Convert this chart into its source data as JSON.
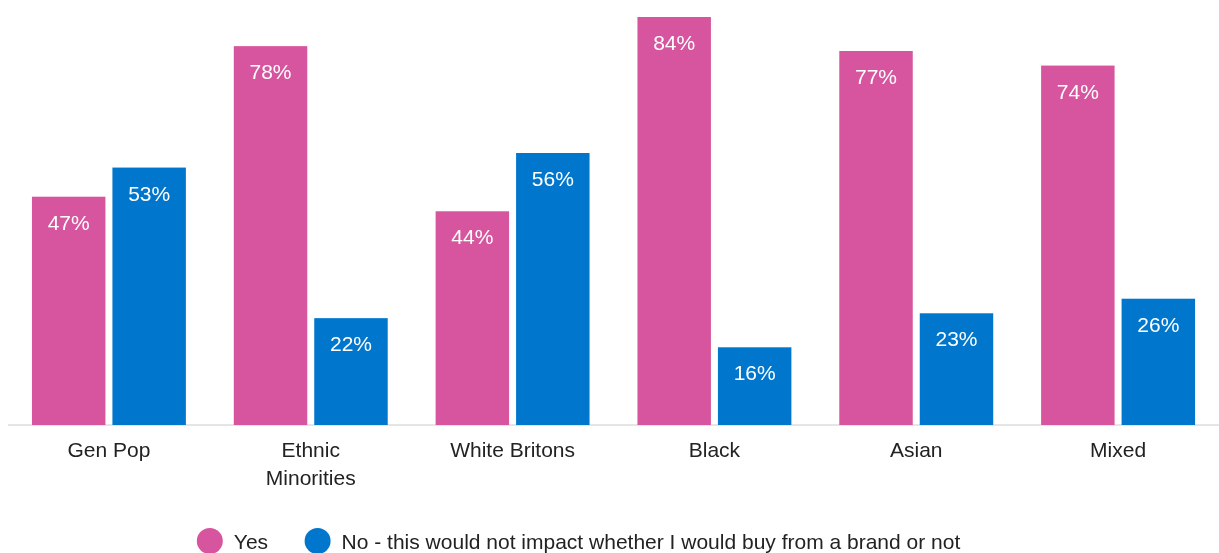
{
  "chart_data": {
    "type": "bar",
    "categories": [
      "Gen Pop",
      "Ethnic Minorities",
      "White Britons",
      "Black",
      "Asian",
      "Mixed"
    ],
    "series": [
      {
        "name": "Yes",
        "color": "#d6559e",
        "values": [
          47,
          78,
          44,
          84,
          77,
          74
        ],
        "value_labels": [
          "47%",
          "78%",
          "44%",
          "84%",
          "77%",
          "74%"
        ]
      },
      {
        "name": "No - this would not impact whether I would buy from a brand or not",
        "color": "#0077cc",
        "values": [
          53,
          22,
          56,
          16,
          23,
          26
        ],
        "value_labels": [
          "53%",
          "22%",
          "56%",
          "16%",
          "23%",
          "26%"
        ]
      }
    ],
    "legend": "bottom"
  }
}
